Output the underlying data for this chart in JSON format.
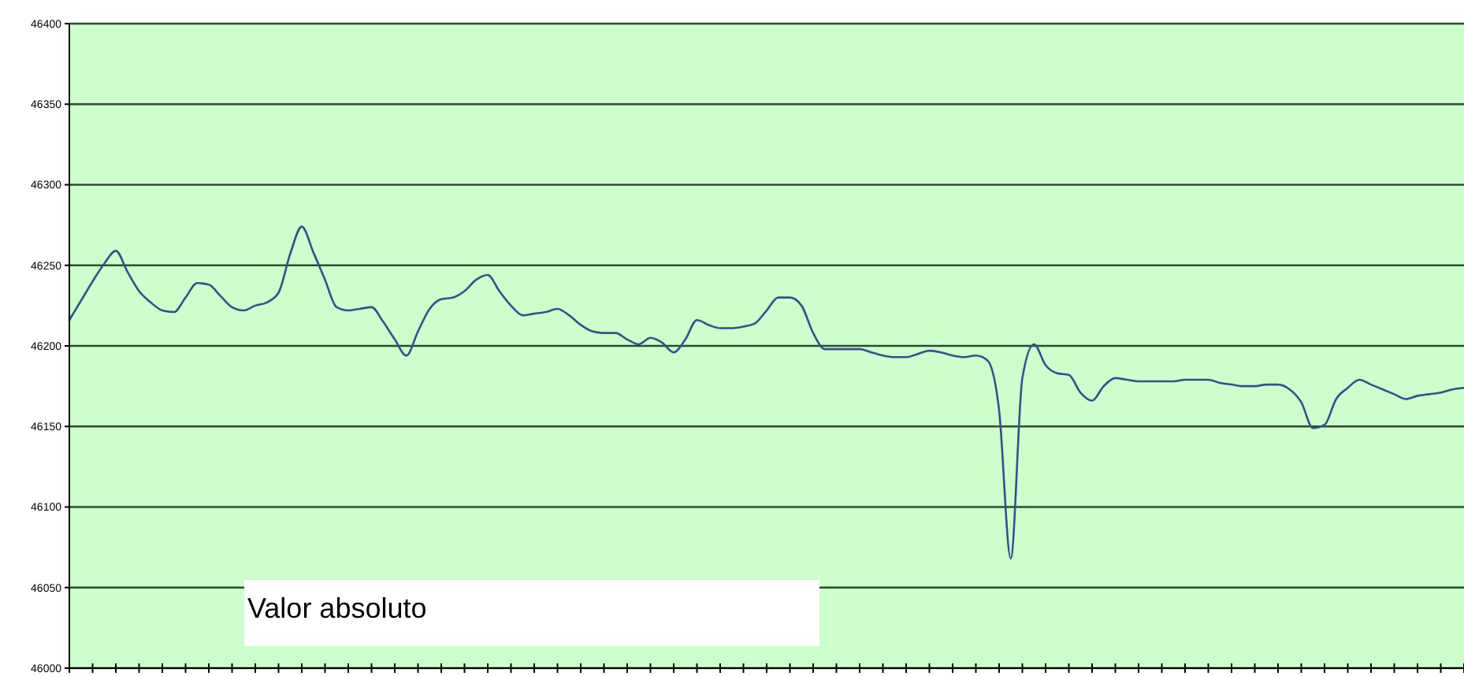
{
  "chart_data": {
    "type": "line",
    "annotations": [
      "Valor absoluto"
    ],
    "categories": [
      null,
      null,
      null,
      null,
      null,
      null,
      null,
      null,
      null,
      null,
      null,
      null,
      null,
      null,
      null,
      null,
      null,
      null,
      null,
      null,
      null,
      null,
      null,
      null,
      null,
      null,
      null,
      null,
      null,
      null,
      null,
      null,
      null,
      null,
      null,
      null,
      null,
      null,
      null,
      null,
      null,
      null,
      null,
      null,
      null,
      null,
      null,
      null,
      null,
      null,
      null,
      null,
      null,
      null,
      null,
      null,
      null,
      null,
      null,
      null,
      null,
      null,
      null,
      null,
      null,
      null,
      null,
      null,
      null,
      null,
      null,
      null,
      null,
      null,
      null,
      null,
      null,
      null,
      null,
      null,
      null,
      null,
      null,
      null,
      null,
      null,
      null,
      null,
      null,
      null,
      null,
      null,
      null,
      null,
      null,
      null,
      null,
      null,
      null,
      null,
      null,
      null,
      null,
      null,
      null,
      null,
      null,
      null,
      null,
      null,
      null,
      null,
      null,
      null,
      null,
      null,
      null,
      null,
      null,
      null,
      null
    ],
    "ylim": [
      46000,
      46400
    ],
    "yticks": [
      46000,
      46050,
      46100,
      46150,
      46200,
      46250,
      46300,
      46350,
      46400
    ],
    "grid": "y",
    "marker": "none",
    "line_style": "solid",
    "series": [
      {
        "color": "#34508a",
        "values": [
          46216,
          46228,
          46240,
          46251,
          46259,
          46246,
          46234,
          46227,
          46222,
          46221,
          46230,
          46239,
          46238,
          46231,
          46224,
          46222,
          46225,
          46227,
          46233,
          46257,
          46274,
          46258,
          46241,
          46224,
          46222,
          46223,
          46224,
          46215,
          46204,
          46194,
          46209,
          46223,
          46229,
          46230,
          46234,
          46241,
          46244,
          46234,
          46225,
          46219,
          46220,
          46221,
          46223,
          46219,
          46213,
          46209,
          46208,
          46208,
          46204,
          46201,
          46205,
          46202,
          46196,
          46204,
          46216,
          46213,
          46211,
          46211,
          46212,
          46214,
          46222,
          46230,
          46230,
          46225,
          46208,
          46198,
          46198,
          46198,
          46198,
          46196,
          46194,
          46193,
          46193,
          46195,
          46197,
          46196,
          46194,
          46193,
          46194,
          46191,
          46160,
          46068,
          46180,
          46201,
          46188,
          46183,
          46182,
          46171,
          46166,
          46175,
          46180,
          46179,
          46178,
          46178,
          46178,
          46178,
          46179,
          46179,
          46179,
          46177,
          46176,
          46175,
          46175,
          46176,
          46176,
          46173,
          46165,
          46149,
          46151,
          46167,
          46174,
          46179,
          46176,
          46173,
          46170,
          46167,
          46169,
          46170,
          46171,
          46173,
          46174
        ]
      }
    ]
  }
}
